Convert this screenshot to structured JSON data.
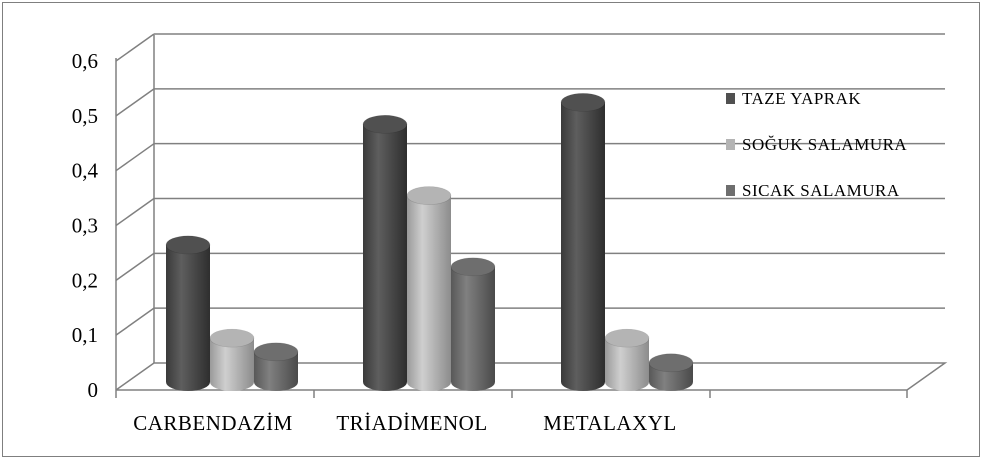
{
  "chart_data": {
    "type": "bar",
    "title": "",
    "xlabel": "",
    "ylabel": "",
    "categories": [
      "CARBENDAZİM",
      "TRİADİMENOL",
      "METALAXYL"
    ],
    "series": [
      {
        "name": "TAZE YAPRAK",
        "color": "#505050",
        "values": [
          0.25,
          0.47,
          0.51
        ]
      },
      {
        "name": "SOĞUK SALAMURA",
        "color": "#b4b4b4",
        "values": [
          0.08,
          0.34,
          0.08
        ]
      },
      {
        "name": "SICAK SALAMURA",
        "color": "#6e6e6e",
        "values": [
          0.055,
          0.21,
          0.035
        ]
      }
    ],
    "ylim": [
      0,
      0.6
    ],
    "yticks": [
      "0",
      "0,1",
      "0,2",
      "0,3",
      "0,4",
      "0,5",
      "0,6"
    ],
    "grid": true,
    "legend_position": "right",
    "style": "3d-cylinder"
  }
}
